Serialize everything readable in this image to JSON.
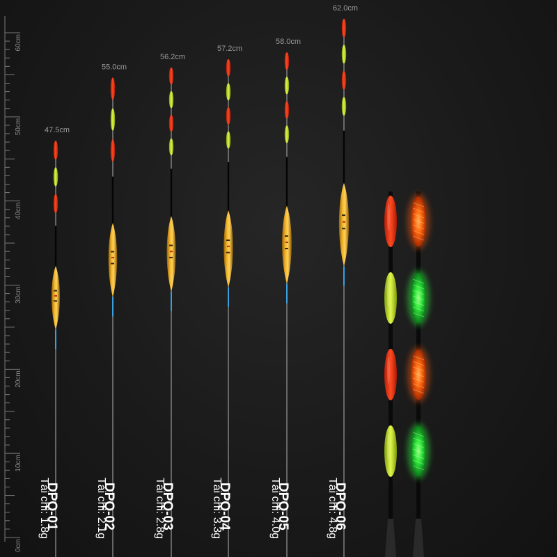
{
  "ruler": {
    "labels": [
      "60cm",
      "50cm",
      "40cm",
      "30cm",
      "20cm",
      "10cm",
      "0cm"
    ],
    "color": "#8a8a8a"
  },
  "floats": [
    {
      "length": "47.5cm",
      "model": "DPQ-01",
      "load": "Tải chì: 1.8g",
      "length_cm": 47.5
    },
    {
      "length": "55.0cm",
      "model": "DPQ-02",
      "load": "Tải chì: 2.1g",
      "length_cm": 55.0
    },
    {
      "length": "56.2cm",
      "model": "DPQ-03",
      "load": "Tải chì: 2.8g",
      "length_cm": 56.2
    },
    {
      "length": "57.2cm",
      "model": "DPQ-04",
      "load": "Tải chì: 3.3g",
      "length_cm": 57.2
    },
    {
      "length": "58.0cm",
      "model": "DPQ-05",
      "load": "Tải chì: 4.0g",
      "length_cm": 58.0
    },
    {
      "length": "62.0cm",
      "model": "DPQ-06",
      "load": "Tải chì: 4.8g",
      "length_cm": 62.0
    }
  ],
  "colors": {
    "tip_red": "#ff3b1a",
    "tip_yellow": "#d6f03a",
    "body_gold": "#e6a21c",
    "glow_orange": "#ff6a10",
    "glow_green": "#39ff3c",
    "stem_blue": "#3b9fe0"
  }
}
